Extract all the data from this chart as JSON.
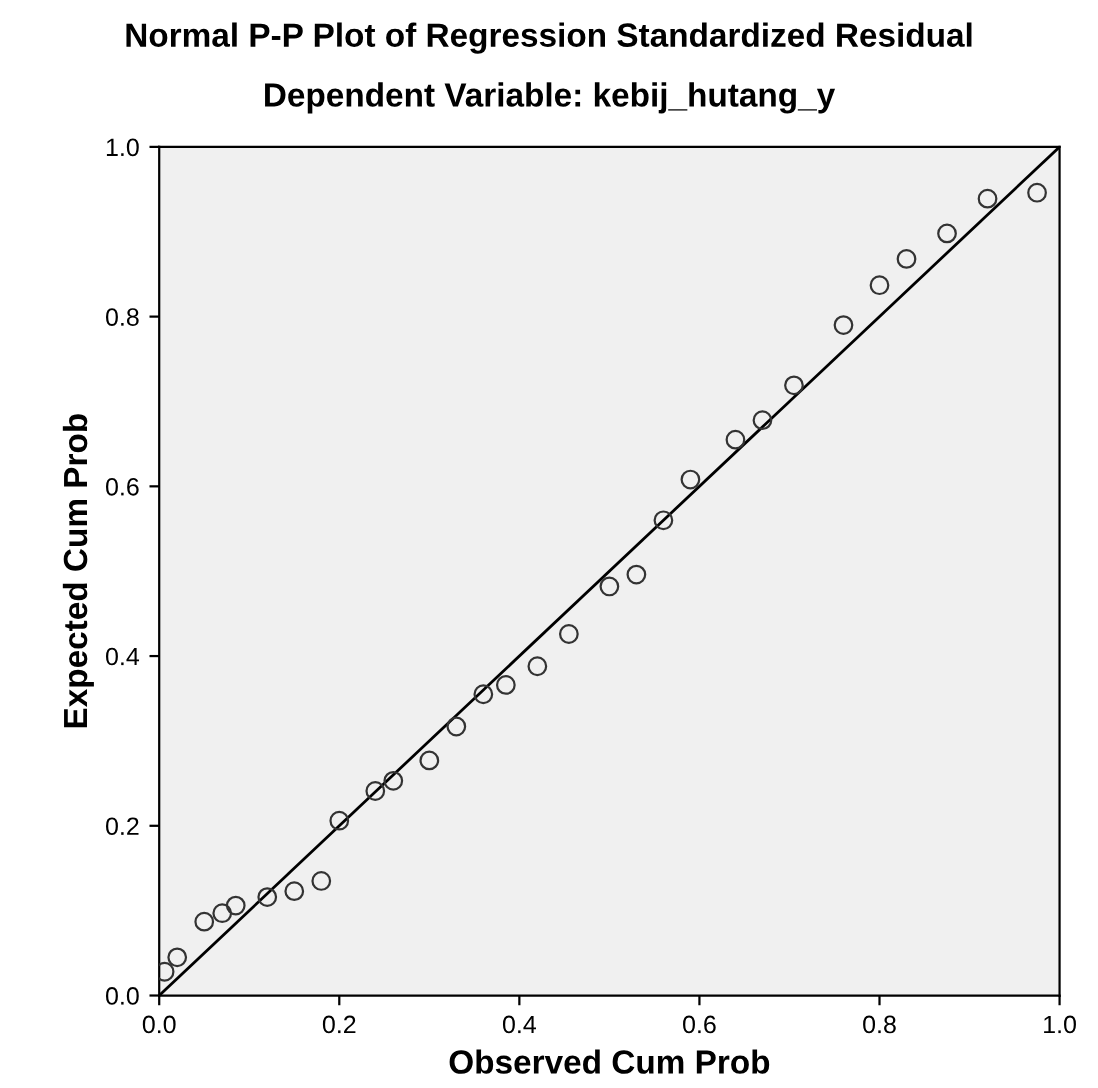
{
  "chart_data": {
    "type": "scatter",
    "title": "Normal P-P Plot of Regression Standardized Residual",
    "subtitle": "Dependent Variable: kebij_hutang_y",
    "xlabel": "Observed Cum Prob",
    "ylabel": "Expected Cum Prob",
    "xlim": [
      0,
      1
    ],
    "ylim": [
      0,
      1
    ],
    "xticks": [
      {
        "value": 0,
        "label": "0.0"
      },
      {
        "value": 0.2,
        "label": "0.2"
      },
      {
        "value": 0.4,
        "label": "0.4"
      },
      {
        "value": 0.6,
        "label": "0.6"
      },
      {
        "value": 0.8,
        "label": "0.8"
      },
      {
        "value": 1,
        "label": "1.0"
      }
    ],
    "yticks": [
      {
        "value": 0,
        "label": "0.0"
      },
      {
        "value": 0.2,
        "label": "0.2"
      },
      {
        "value": 0.4,
        "label": "0.4"
      },
      {
        "value": 0.6,
        "label": "0.6"
      },
      {
        "value": 0.8,
        "label": "0.8"
      },
      {
        "value": 1,
        "label": "1.0"
      }
    ],
    "grid": false,
    "series": [
      {
        "marker": "circle",
        "color": "#333333",
        "x": [
          0.006,
          0.02,
          0.05,
          0.07,
          0.085,
          0.12,
          0.15,
          0.18,
          0.2,
          0.24,
          0.26,
          0.3,
          0.33,
          0.36,
          0.385,
          0.42,
          0.455,
          0.5,
          0.53,
          0.56,
          0.59,
          0.64,
          0.67,
          0.705,
          0.76,
          0.8,
          0.83,
          0.875,
          0.92,
          0.975
        ],
        "values": [
          0.028,
          0.045,
          0.087,
          0.097,
          0.106,
          0.116,
          0.123,
          0.135,
          0.206,
          0.241,
          0.253,
          0.277,
          0.317,
          0.355,
          0.366,
          0.388,
          0.426,
          0.482,
          0.496,
          0.56,
          0.608,
          0.655,
          0.678,
          0.719,
          0.79,
          0.837,
          0.868,
          0.898,
          0.939,
          0.946
        ]
      },
      {
        "type": "line",
        "color": "#000000",
        "x": [
          0,
          1
        ],
        "values": [
          0,
          1
        ]
      }
    ]
  }
}
